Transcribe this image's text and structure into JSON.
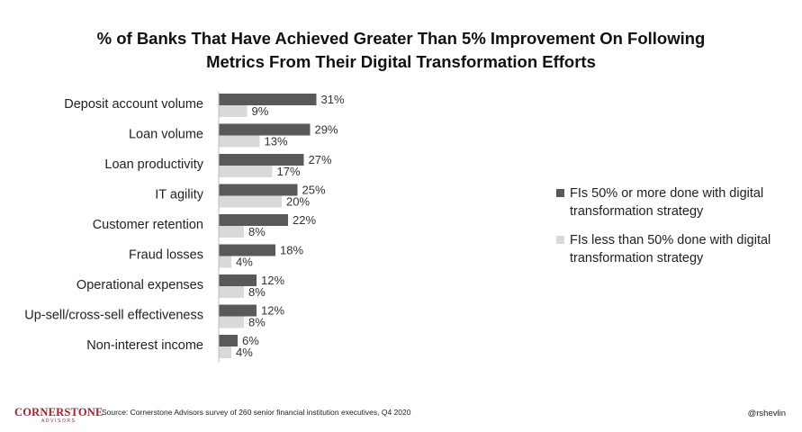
{
  "title": {
    "line1": "% of Banks That Have Achieved Greater Than 5% Improvement On Following",
    "line2": "Metrics From Their Digital Transformation Efforts"
  },
  "colors": {
    "series1": "#595959",
    "series2": "#d9d9d9",
    "axis": "#bfbfbf",
    "brand": "#a8202a"
  },
  "chart_data": {
    "type": "bar",
    "orientation": "horizontal",
    "title": "% of Banks That Have Achieved Greater Than 5% Improvement On Following Metrics From Their Digital Transformation Efforts",
    "categories": [
      "Deposit account volume",
      "Loan volume",
      "Loan productivity",
      "IT agility",
      "Customer retention",
      "Fraud losses",
      "Operational expenses",
      "Up-sell/cross-sell effectiveness",
      "Non-interest income"
    ],
    "series": [
      {
        "name": "FIs 50% or more done with digital transformation strategy",
        "values": [
          31,
          29,
          27,
          25,
          22,
          18,
          12,
          12,
          6
        ]
      },
      {
        "name": "FIs less than 50% done with digital transformation strategy",
        "values": [
          9,
          13,
          17,
          20,
          8,
          4,
          8,
          8,
          4
        ]
      }
    ],
    "value_suffix": "%",
    "xlim": [
      0,
      100
    ],
    "xlabel": "",
    "ylabel": "",
    "grid": false,
    "legend": "right"
  },
  "legend": {
    "series1_line1": "FIs 50% or more done with digital",
    "series1_line2": "transformation strategy",
    "series2_line1": "FIs less than 50% done with digital",
    "series2_line2": "transformation strategy"
  },
  "footer": {
    "logo_main": "CORNERSTONE",
    "logo_sub": "ADVISORS",
    "source": "Source: Cornerstone Advisors survey of 260 senior financial institution executives, Q4 2020",
    "handle": "@rshevlin"
  }
}
